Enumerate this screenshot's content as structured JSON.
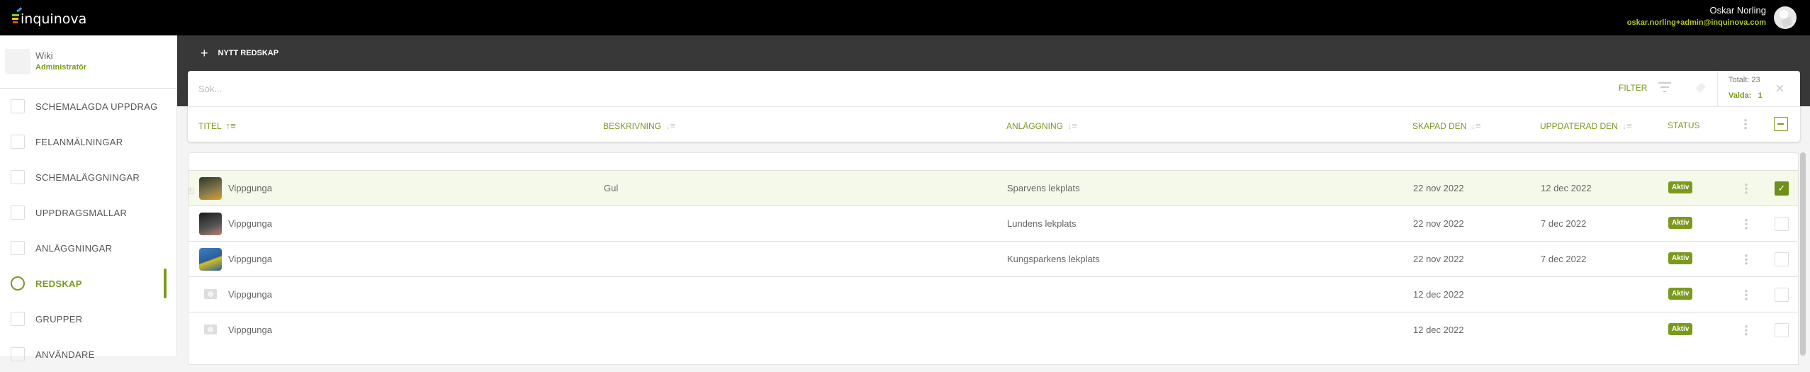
{
  "topbar": {
    "logo_text": "inquinova",
    "user_name": "Oskar Norling",
    "user_email": "oskar.norling+admin@inquinova.com"
  },
  "sidebar": {
    "org_name": "Wiki",
    "org_role": "Administratör",
    "items": [
      {
        "label": "SCHEMALAGDA UPPDRAG",
        "icon": "clipboard-icon"
      },
      {
        "label": "FELANMÄLNINGAR",
        "icon": "alert-icon"
      },
      {
        "label": "SCHEMALÄGGNINGAR",
        "icon": "calendar-icon"
      },
      {
        "label": "UPPDRAGSMALLAR",
        "icon": "map-icon"
      },
      {
        "label": "ANLÄGGNINGAR",
        "icon": "building-icon"
      },
      {
        "label": "REDSKAP",
        "icon": "location-pin-icon",
        "active": true
      },
      {
        "label": "GRUPPER",
        "icon": "group-icon"
      },
      {
        "label": "ANVÄNDARE",
        "icon": "user-icon"
      }
    ]
  },
  "toolbar": {
    "new_button": "NYTT REDSKAP",
    "plus": "+"
  },
  "search": {
    "placeholder": "Sök...",
    "value": ""
  },
  "filter": {
    "label": "FILTER"
  },
  "totals": {
    "total_label": "Totalt:",
    "total": "23",
    "selected_label": "Valda:",
    "selected": "1"
  },
  "columns": [
    "TITEL",
    "BESKRIVNING",
    "ANLÄGGNING",
    "SKAPAD DEN",
    "UPPDATERAD DEN",
    "STATUS"
  ],
  "sort": {
    "column": "TITEL",
    "direction": "ascending"
  },
  "rows": [
    {
      "title": "Vippgunga",
      "description": "Gul",
      "facility": "Sparvens lekplats",
      "created": "22 nov 2022",
      "updated": "12 dec 2022",
      "status": "Aktiv",
      "selected": true,
      "thumb": "photo"
    },
    {
      "title": "Vippgunga",
      "description": "",
      "facility": "Lundens lekplats",
      "created": "22 nov 2022",
      "updated": "7 dec 2022",
      "status": "Aktiv",
      "selected": false,
      "thumb": "photo"
    },
    {
      "title": "Vippgunga",
      "description": "",
      "facility": "Kungsparkens lekplats",
      "created": "22 nov 2022",
      "updated": "7 dec 2022",
      "status": "Aktiv",
      "selected": false,
      "thumb": "photo"
    },
    {
      "title": "Vippgunga",
      "description": "",
      "facility": "",
      "created": "12 dec 2022",
      "updated": "",
      "status": "Aktiv",
      "selected": false,
      "thumb": "camera-placeholder"
    },
    {
      "title": "Vippgunga",
      "description": "",
      "facility": "",
      "created": "12 dec 2022",
      "updated": "",
      "status": "Aktiv",
      "selected": false,
      "thumb": "camera-placeholder"
    }
  ],
  "row_index_label": "1",
  "colors": {
    "accent": "#7a9a1e",
    "topbar": "#000000",
    "band": "#383838",
    "selected_row": "#f5f9ea"
  }
}
